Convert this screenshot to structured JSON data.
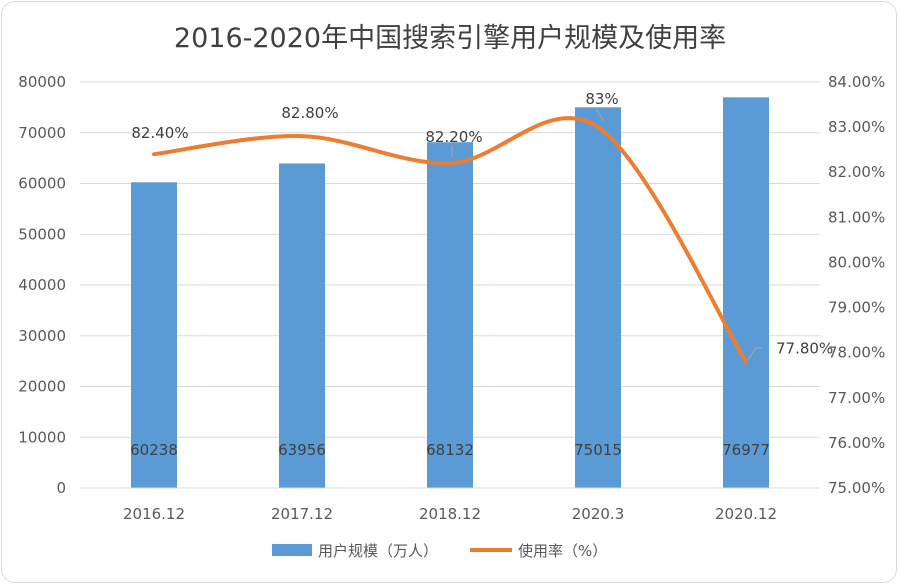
{
  "chart_data": {
    "type": "bar+line",
    "title": "2016-2020年中国搜索引擎用户规模及使用率",
    "categories": [
      "2016.12",
      "2017.12",
      "2018.12",
      "2020.3",
      "2020.12"
    ],
    "series": [
      {
        "name": "用户规模（万人）",
        "type": "bar",
        "axis": "left",
        "color": "#5b9bd5",
        "values": [
          60238,
          63956,
          68132,
          75015,
          76977
        ],
        "labels": [
          "60238",
          "63956",
          "68132",
          "75015",
          "76977"
        ]
      },
      {
        "name": "使用率（%）",
        "type": "line",
        "axis": "right",
        "smooth": true,
        "color": "#ed7d31",
        "values": [
          82.4,
          82.8,
          82.2,
          83.0,
          77.8
        ],
        "labels": [
          "82.40%",
          "82.80%",
          "82.20%",
          "83%",
          "77.80%"
        ]
      }
    ],
    "y_left": {
      "min": 0,
      "max": 80000,
      "ticks": [
        "0",
        "10000",
        "20000",
        "30000",
        "40000",
        "50000",
        "60000",
        "70000",
        "80000"
      ]
    },
    "y_right": {
      "min": 75,
      "max": 84,
      "ticks": [
        "75.00%",
        "76.00%",
        "77.00%",
        "78.00%",
        "79.00%",
        "80.00%",
        "81.00%",
        "82.00%",
        "83.00%",
        "84.00%"
      ]
    },
    "gridlines": true,
    "legend_position": "bottom"
  }
}
